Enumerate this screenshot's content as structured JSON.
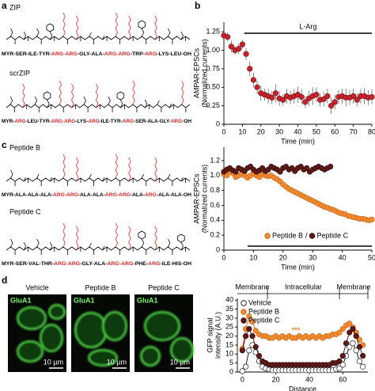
{
  "figure": {
    "panel_labels": [
      "a",
      "b",
      "c",
      "d"
    ],
    "structures": [
      {
        "name": "ZIP",
        "sequence": [
          "MYR-SER-ILE-TYR-",
          "ARG-ARG",
          "-GLY-ALA-",
          "ARG-ARG",
          "-TRP-",
          "ARG",
          "-LYS-LEU-OH"
        ]
      },
      {
        "name": "scrZIP",
        "sequence": [
          "MYR-",
          "ARG",
          "-LEU-TYR-",
          "ARG-ARG",
          "-LYS-",
          "ARG",
          "-ILE-TYR-",
          "ARG",
          "-SER-ALA-GLY-",
          "ARG",
          "-OH"
        ]
      },
      {
        "name": "Peptide B",
        "sequence": [
          "MYR-ALA-ALA-ALA-",
          "ARG-ARG",
          "-ALA-ALA-",
          "ARG-ARG",
          "-ALA-",
          "ARG",
          "-ALA-ALA-OH"
        ]
      },
      {
        "name": "Peptide C",
        "sequence": [
          "MYR-SER-VAL-THR-",
          "ARG-ARG",
          "-GLY-ALA-",
          "ARG-ARG",
          "-PHE-",
          "ARG",
          "-ILE-HIS-OH"
        ]
      }
    ],
    "images": [
      {
        "title": "Vehicle",
        "stain": "GluA1",
        "scale": "10 µm"
      },
      {
        "title": "Peptide B",
        "stain": "GluA1",
        "scale": "10 µm"
      },
      {
        "title": "Peptide C",
        "stain": "GluA1",
        "scale": "10 µm"
      }
    ]
  },
  "chart_data": [
    {
      "type": "scatter",
      "x_label": "Time (min)",
      "y_label": [
        "AMPAR-EPSCs",
        "(Normalized currents)"
      ],
      "x": [
        0,
        2,
        4,
        6,
        8,
        10,
        12,
        14,
        16,
        18,
        20,
        22,
        24,
        26,
        28,
        30,
        32,
        34,
        36,
        38,
        40,
        42,
        44,
        46,
        48,
        50,
        52,
        54,
        56,
        58,
        60,
        62,
        64,
        66,
        68,
        70,
        72,
        74,
        76,
        78,
        80
      ],
      "values": [
        1.2,
        1.18,
        1.05,
        1.0,
        1.02,
        1.08,
        0.95,
        0.75,
        0.6,
        0.5,
        0.42,
        0.4,
        0.38,
        0.36,
        0.42,
        0.35,
        0.33,
        0.38,
        0.36,
        0.38,
        0.4,
        0.37,
        0.3,
        0.35,
        0.38,
        0.4,
        0.33,
        0.34,
        0.38,
        0.25,
        0.3,
        0.37,
        0.38,
        0.36,
        0.36,
        0.38,
        0.33,
        0.38,
        0.38,
        0.36,
        0.37
      ],
      "errors": [
        0.05,
        0.06,
        0.08,
        0.06,
        0.07,
        0.06,
        0.08,
        0.1,
        0.1,
        0.09,
        0.1,
        0.08,
        0.1,
        0.09,
        0.12,
        0.1,
        0.08,
        0.1,
        0.09,
        0.1,
        0.11,
        0.1,
        0.08,
        0.1,
        0.12,
        0.1,
        0.09,
        0.1,
        0.1,
        0.11,
        0.1,
        0.09,
        0.1,
        0.12,
        0.1,
        0.1,
        0.09,
        0.1,
        0.11,
        0.1,
        0.1
      ],
      "color": "#c8232c",
      "edge_color": "#6e0f12",
      "xlim": [
        0,
        80
      ],
      "xticks": [
        0,
        10,
        20,
        30,
        40,
        50,
        60,
        70,
        80
      ],
      "ylim": [
        0,
        1.38
      ],
      "yticks": [
        0,
        0.25,
        {
          "value": 0.5,
          "label": "0.50"
        },
        0.75,
        {
          "value": 1,
          "label": "1.00"
        },
        1.25
      ],
      "annotation": {
        "text": "L-Arg",
        "span": [
          11,
          80
        ]
      }
    },
    {
      "type": "scatter",
      "x_label": "Time (min)",
      "y_label": [
        "AMPAR-EPSCs",
        "(Normalized currents)"
      ],
      "series": [
        {
          "name": "Peptide B",
          "color": "#f28a2e",
          "edge_color": "#c4621a",
          "x": [
            0,
            1,
            2,
            3,
            4,
            5,
            6,
            7,
            8,
            9,
            10,
            11,
            12,
            13,
            14,
            15,
            16,
            17,
            18,
            19,
            20,
            21,
            22,
            23,
            24,
            25,
            26,
            27,
            28,
            29,
            30,
            31,
            32,
            33,
            34,
            35,
            36,
            37,
            38,
            39,
            40,
            41,
            42,
            43,
            44,
            45,
            46,
            47,
            48,
            49,
            50
          ],
          "values": [
            1.02,
            1.0,
            1.05,
            1.03,
            0.98,
            1.0,
            1.02,
            1.0,
            0.97,
            1.0,
            1.03,
            1.0,
            0.98,
            1.02,
            1.0,
            0.99,
            1.0,
            0.97,
            0.95,
            0.92,
            0.88,
            0.85,
            0.82,
            0.8,
            0.78,
            0.76,
            0.74,
            0.72,
            0.7,
            0.68,
            0.66,
            0.64,
            0.62,
            0.6,
            0.58,
            0.57,
            0.55,
            0.54,
            0.52,
            0.5,
            0.49,
            0.48,
            0.46,
            0.45,
            0.44,
            0.43,
            0.42,
            0.42,
            0.41,
            0.4,
            0.41
          ]
        },
        {
          "name": "Peptide C",
          "color": "#5e1a17",
          "edge_color": "#2e0a08",
          "x": [
            0,
            1,
            2,
            3,
            4,
            5,
            6,
            7,
            8,
            9,
            10,
            11,
            12,
            13,
            14,
            15,
            16,
            17,
            18,
            19,
            20,
            21,
            22,
            23,
            24,
            25,
            26,
            27,
            28,
            29,
            30,
            31,
            32,
            33,
            34,
            35,
            36
          ],
          "values": [
            1.05,
            1.08,
            1.1,
            1.07,
            1.05,
            1.1,
            1.08,
            1.06,
            1.1,
            1.12,
            1.08,
            1.05,
            1.07,
            1.1,
            1.06,
            1.08,
            1.12,
            1.1,
            1.08,
            1.05,
            1.1,
            1.12,
            1.08,
            1.1,
            1.06,
            1.1,
            1.12,
            1.08,
            1.1,
            1.05,
            1.08,
            1.1,
            1.12,
            1.1,
            1.08,
            1.1,
            1.12
          ]
        }
      ],
      "legend": "lower right",
      "legend_separator": "/",
      "xlim": [
        0,
        50
      ],
      "xticks": [
        0,
        10,
        20,
        30,
        40,
        50
      ],
      "ylim": [
        0,
        1.38
      ],
      "yticks": [
        0,
        0.2,
        0.4,
        0.6,
        0.8,
        {
          "value": 1,
          "label": "1.0"
        },
        1.2
      ],
      "annotation": {
        "span": [
          8,
          50
        ]
      }
    },
    {
      "type": "line",
      "x_label": "Distance",
      "y_label": [
        "GFP signal",
        "intensity (A.U.)"
      ],
      "x": [
        0,
        2,
        4,
        6,
        8,
        10,
        12,
        14,
        16,
        18,
        20,
        22,
        24,
        26,
        28,
        30,
        32,
        34,
        36,
        38,
        40,
        42,
        44,
        46,
        48,
        50,
        52,
        54,
        56,
        58,
        60,
        62,
        64,
        66,
        68,
        70,
        72
      ],
      "series": [
        {
          "name": "Vehicle",
          "color": "#ffffff",
          "edge_color": "#000000",
          "values": [
            0.5,
            3,
            12,
            15,
            11,
            6,
            3,
            2,
            1.5,
            1,
            1,
            1,
            1,
            1,
            1,
            1,
            1,
            1,
            1,
            1,
            1,
            1,
            1,
            1,
            1,
            1,
            1,
            1,
            1.5,
            2,
            4,
            9,
            14,
            16,
            12,
            6,
            3
          ]
        },
        {
          "name": "Peptide B",
          "color": "#f28a2e",
          "edge_color": "#c4621a",
          "values": [
            13,
            24,
            31,
            28,
            23,
            21,
            20,
            20,
            19,
            19,
            20,
            19,
            20,
            19,
            20,
            19,
            19,
            20,
            19,
            20,
            19,
            20,
            19,
            20,
            19,
            20,
            20,
            21,
            21,
            22,
            24,
            26,
            27,
            25,
            22,
            18,
            15
          ]
        },
        {
          "name": "Peptide C",
          "color": "#5e1a17",
          "edge_color": "#2e0a08",
          "values": [
            12,
            20,
            24,
            20,
            14,
            9,
            6,
            5,
            4,
            4,
            4,
            4,
            4,
            4,
            4,
            4,
            4,
            4,
            4,
            4,
            4,
            4,
            4,
            4,
            4,
            4,
            4,
            5,
            5,
            6,
            9,
            16,
            22,
            24,
            20,
            14,
            9
          ]
        }
      ],
      "legend": "upper left",
      "regions": [
        {
          "label": "Membrane",
          "range": [
            -3,
            15
          ]
        },
        {
          "label": "Intracellular",
          "range": [
            15,
            58
          ]
        },
        {
          "label": "Membrane",
          "range": [
            58,
            75
          ]
        }
      ],
      "annotation": {
        "text": "***",
        "x": 32,
        "y": 23,
        "color": "#f28a2e"
      },
      "xlim": [
        -3,
        75
      ],
      "xticks": [
        0,
        20,
        40,
        60
      ],
      "ylim": [
        0,
        41
      ],
      "yticks": [
        0,
        5,
        10,
        15,
        20,
        25,
        30,
        35,
        40
      ]
    }
  ]
}
